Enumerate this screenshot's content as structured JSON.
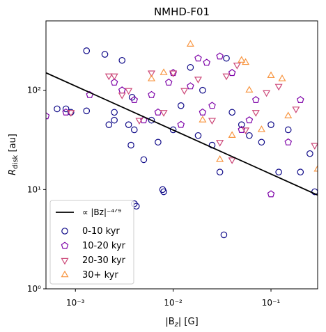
{
  "chart_data": {
    "type": "scatter",
    "title": "NMHD-F01",
    "x_label": {
      "pre": "|B",
      "sub": "z",
      "post": "| [G]"
    },
    "y_label": {
      "pre": "R",
      "sub": "disk",
      "post": " [au]"
    },
    "xscale": "log",
    "yscale": "log",
    "xlim": [
      0.0005,
      0.3
    ],
    "ylim": [
      1,
      500
    ],
    "xticks": [
      {
        "value": 0.001,
        "label": "10⁻³"
      },
      {
        "value": 0.01,
        "label": "10⁻²"
      },
      {
        "value": 0.1,
        "label": "10⁻¹"
      }
    ],
    "yticks": [
      {
        "value": 1,
        "label": "10⁰"
      },
      {
        "value": 10,
        "label": "10¹"
      },
      {
        "value": 100,
        "label": "10²"
      }
    ],
    "legend": "lower left",
    "lines": [
      {
        "name": "∝ |Bz|⁻⁴ᐟ⁹",
        "color": "#000000",
        "x": [
          0.0005,
          0.3
        ],
        "y": [
          150,
          8.8
        ]
      }
    ],
    "series": [
      {
        "name": "0-10 kyr",
        "color": "#0d0887",
        "marker": "o",
        "x": [
          0.00065,
          0.0008,
          0.0009,
          0.0013,
          0.0013,
          0.002,
          0.0022,
          0.0025,
          0.003,
          0.0035,
          0.0037,
          0.004,
          0.0042,
          0.005,
          0.006,
          0.007,
          0.0078,
          0.008,
          0.01,
          0.012,
          0.015,
          0.018,
          0.02,
          0.025,
          0.03,
          0.033,
          0.04,
          0.05,
          0.06,
          0.08,
          0.1,
          0.12,
          0.15,
          0.2,
          0.25,
          0.28,
          0.004,
          0.0038,
          0.035,
          0.0025
        ],
        "values": [
          65,
          65,
          60,
          250,
          62,
          230,
          45,
          60,
          200,
          45,
          28,
          7.2,
          6.8,
          20,
          50,
          30,
          10,
          9.5,
          40,
          70,
          170,
          35,
          100,
          28,
          15,
          3.5,
          60,
          45,
          35,
          30,
          45,
          15,
          40,
          15,
          23,
          9.5,
          40,
          85,
          210,
          50
        ]
      },
      {
        "name": "10-20 kyr",
        "color": "#7e03a8",
        "marker": "p",
        "x": [
          0.0005,
          0.0008,
          0.0014,
          0.0025,
          0.003,
          0.004,
          0.005,
          0.006,
          0.007,
          0.009,
          0.012,
          0.015,
          0.018,
          0.02,
          0.025,
          0.03,
          0.04,
          0.05,
          0.06,
          0.07,
          0.1,
          0.15,
          0.2,
          0.01,
          0.022
        ],
        "values": [
          55,
          60,
          90,
          120,
          100,
          80,
          50,
          90,
          60,
          120,
          45,
          110,
          210,
          60,
          70,
          220,
          150,
          40,
          50,
          80,
          9,
          30,
          80,
          150,
          190
        ]
      },
      {
        "name": "20-30 kyr",
        "color": "#cc4778",
        "marker": "v",
        "x": [
          0.0009,
          0.0022,
          0.0025,
          0.003,
          0.0035,
          0.0045,
          0.006,
          0.008,
          0.01,
          0.013,
          0.018,
          0.025,
          0.03,
          0.035,
          0.045,
          0.055,
          0.07,
          0.09,
          0.12,
          0.18,
          0.28,
          0.04
        ],
        "values": [
          60,
          140,
          140,
          90,
          100,
          50,
          150,
          60,
          150,
          100,
          130,
          50,
          30,
          140,
          180,
          40,
          60,
          95,
          110,
          65,
          28,
          20
        ]
      },
      {
        "name": "30+ kyr",
        "color": "#f89540",
        "marker": "^",
        "x": [
          0.006,
          0.008,
          0.015,
          0.03,
          0.04,
          0.05,
          0.055,
          0.06,
          0.08,
          0.1,
          0.13,
          0.15,
          0.3,
          0.02
        ],
        "values": [
          130,
          150,
          290,
          20,
          35,
          200,
          190,
          100,
          40,
          140,
          130,
          55,
          16,
          50
        ]
      }
    ]
  }
}
